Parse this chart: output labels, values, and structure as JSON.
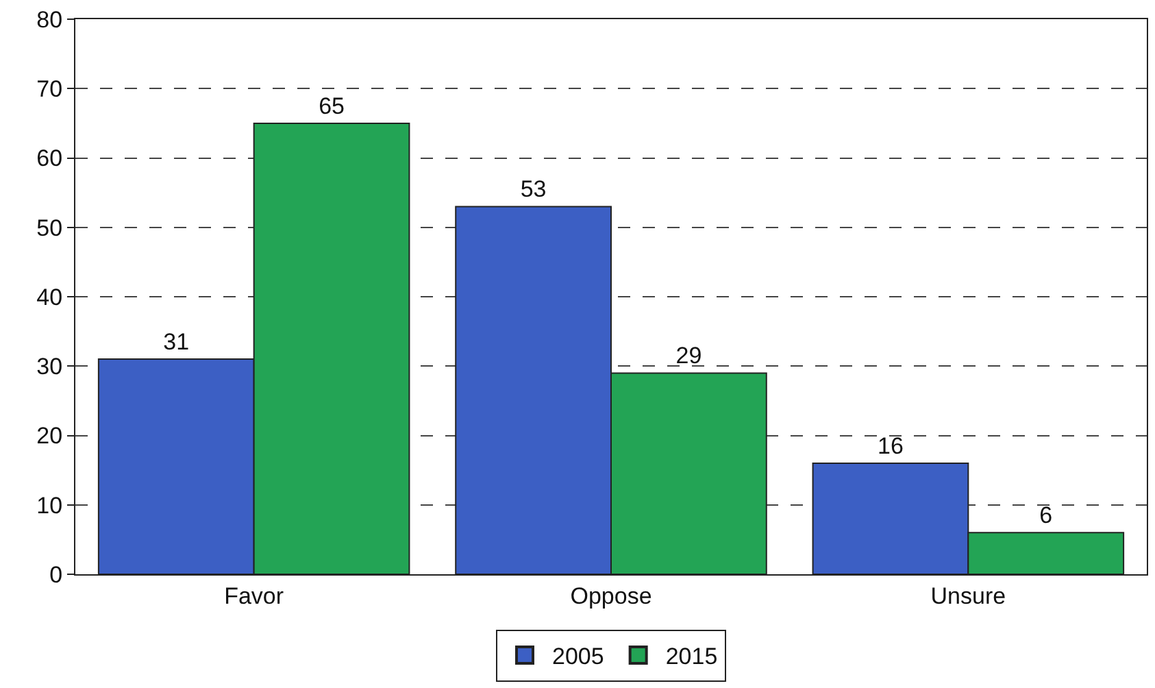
{
  "chart_data": {
    "type": "bar",
    "categories": [
      "Favor",
      "Oppose",
      "Unsure"
    ],
    "series": [
      {
        "name": "2005",
        "color": "#3c5fc4",
        "values": [
          31,
          53,
          16
        ]
      },
      {
        "name": "2015",
        "color": "#23a455",
        "values": [
          65,
          29,
          6
        ]
      }
    ],
    "ylim": [
      0,
      80
    ],
    "yticks": [
      0,
      10,
      20,
      30,
      40,
      50,
      60,
      70,
      80
    ],
    "grid": "y",
    "legend": "bottom",
    "data_labels": true
  }
}
